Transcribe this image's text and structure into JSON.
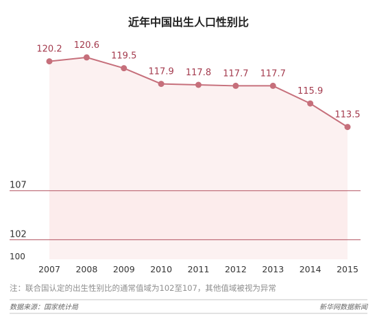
{
  "chart_data": {
    "type": "area",
    "title": "近年中国出生人口性别比",
    "categories": [
      "2007",
      "2008",
      "2009",
      "2010",
      "2011",
      "2012",
      "2013",
      "2014",
      "2015"
    ],
    "values": [
      120.2,
      120.6,
      119.5,
      117.9,
      117.8,
      117.7,
      117.7,
      115.9,
      113.5
    ],
    "value_labels": [
      "120.2",
      "120.6",
      "119.5",
      "117.9",
      "117.8",
      "117.7",
      "117.7",
      "115.9",
      "113.5"
    ],
    "ylim": [
      100,
      121.5
    ],
    "reference_lines": [
      {
        "value": 107,
        "label": "107"
      },
      {
        "value": 102,
        "label": "102"
      }
    ],
    "y_base_label": "100",
    "normal_range": [
      102,
      107
    ],
    "grid": false,
    "note": "注：联合国认定的出生性别比的通常值域为102至107，其他值域被视为异常",
    "source": "数据来源：国家统计局",
    "credit": "新华网数据新闻",
    "colors": {
      "title": "#222222",
      "line": "#c66f7b",
      "point": "#c66f7b",
      "value_label": "#a33a4d",
      "area_fill": "#fceeee",
      "range_fill": "#fadcdc",
      "ref_line": "#b1505e",
      "axis_text": "#333333",
      "note_text": "#8e8e8e",
      "footer_text": "#666666",
      "footer_rule": "#c6c6c6"
    }
  }
}
